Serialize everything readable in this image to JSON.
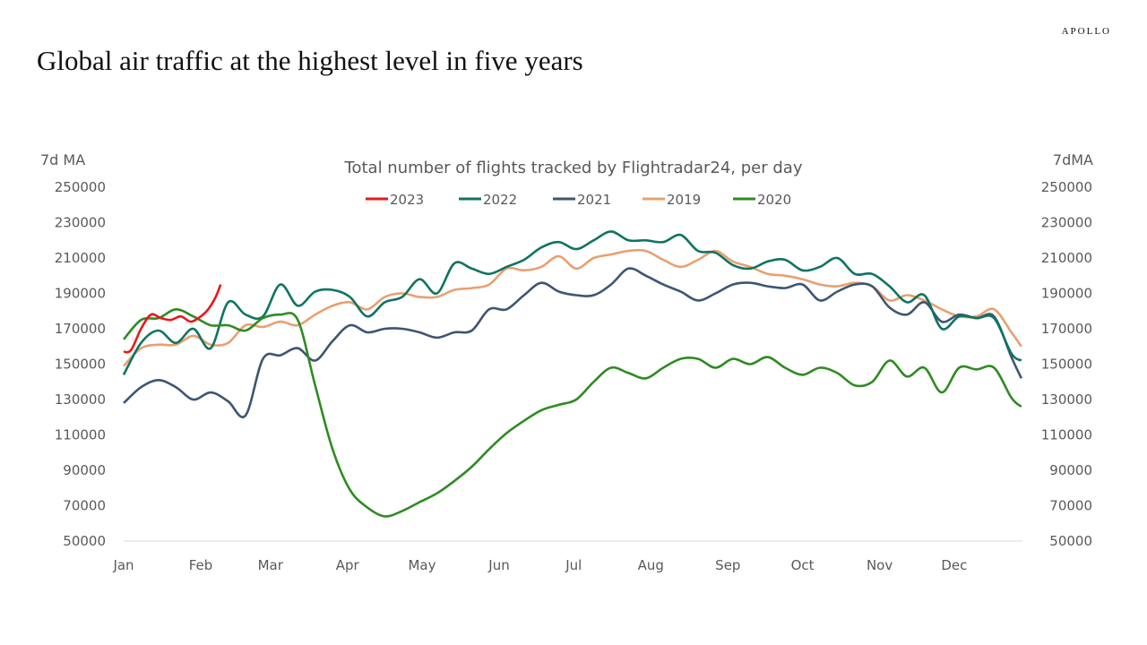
{
  "header": {
    "title": "Global air traffic at the highest level in five years",
    "brand": "APOLLO"
  },
  "chart_data": {
    "type": "line",
    "title": "Total number of flights tracked by Flightradar24, per day",
    "ylabel_left": "7d MA",
    "ylabel_right": "7dMA",
    "ylim": [
      50000,
      250000
    ],
    "yticks": [
      50000,
      70000,
      90000,
      110000,
      130000,
      150000,
      170000,
      190000,
      210000,
      230000,
      250000
    ],
    "xticks": [
      "Jan",
      "Feb",
      "Mar",
      "Apr",
      "May",
      "Jun",
      "Jul",
      "Aug",
      "Sep",
      "Oct",
      "Nov",
      "Dec"
    ],
    "grid": false,
    "legend": "top",
    "x": [
      "01-01",
      "01-08",
      "01-15",
      "01-22",
      "01-29",
      "02-05",
      "02-12",
      "02-19",
      "02-26",
      "03-05",
      "03-12",
      "03-19",
      "03-26",
      "04-02",
      "04-09",
      "04-16",
      "04-23",
      "04-30",
      "05-07",
      "05-14",
      "05-21",
      "05-28",
      "06-04",
      "06-11",
      "06-18",
      "06-25",
      "07-02",
      "07-09",
      "07-16",
      "07-23",
      "07-30",
      "08-06",
      "08-13",
      "08-20",
      "08-27",
      "09-03",
      "09-10",
      "09-17",
      "09-24",
      "10-01",
      "10-08",
      "10-15",
      "10-22",
      "10-29",
      "11-05",
      "11-12",
      "11-19",
      "11-26",
      "12-03",
      "12-10",
      "12-17",
      "12-24",
      "12-28"
    ],
    "series": [
      {
        "name": "2023",
        "color": "#E8191A",
        "x": [
          "01-01",
          "01-04",
          "01-08",
          "01-12",
          "01-16",
          "01-20",
          "01-24",
          "01-28",
          "02-01",
          "02-04",
          "02-07",
          "02-09"
        ],
        "values": [
          157000,
          158000,
          170000,
          178000,
          176000,
          175000,
          177000,
          174000,
          177000,
          181000,
          188000,
          195000
        ]
      },
      {
        "name": "2022",
        "color": "#0E7460",
        "values": [
          144000,
          162000,
          169000,
          162000,
          170000,
          159000,
          185000,
          178000,
          177000,
          195000,
          183000,
          191000,
          192000,
          188000,
          177000,
          185000,
          188000,
          198000,
          190000,
          207000,
          204000,
          201000,
          205000,
          209000,
          216000,
          219000,
          215000,
          220000,
          225000,
          220000,
          220000,
          219000,
          223000,
          214000,
          213000,
          206000,
          204000,
          208000,
          209000,
          203000,
          205000,
          210000,
          201000,
          201000,
          194000,
          185000,
          189000,
          170000,
          177000,
          176000,
          176000,
          156000,
          152000
        ]
      },
      {
        "name": "2021",
        "color": "#3E5573",
        "values": [
          128000,
          137000,
          141000,
          137000,
          130000,
          134000,
          129000,
          121000,
          153000,
          155000,
          159000,
          152000,
          163000,
          172000,
          168000,
          170000,
          170000,
          168000,
          165000,
          168000,
          169000,
          181000,
          181000,
          189000,
          196000,
          191000,
          189000,
          189000,
          195000,
          204000,
          200000,
          195000,
          191000,
          186000,
          190000,
          195000,
          196000,
          194000,
          193000,
          195000,
          186000,
          191000,
          195000,
          194000,
          182000,
          178000,
          185000,
          174000,
          178000,
          176000,
          177000,
          154000,
          142000
        ]
      },
      {
        "name": "2019",
        "color": "#E8A070",
        "values": [
          149000,
          159000,
          161000,
          161000,
          166000,
          161000,
          162000,
          172000,
          171000,
          174000,
          172000,
          178000,
          183000,
          185000,
          181000,
          188000,
          190000,
          188000,
          188000,
          192000,
          193000,
          195000,
          204000,
          203000,
          205000,
          211000,
          204000,
          210000,
          212000,
          214000,
          214000,
          209000,
          205000,
          209000,
          214000,
          208000,
          205000,
          201000,
          200000,
          198000,
          195000,
          194000,
          196000,
          194000,
          186000,
          189000,
          186000,
          181000,
          177000,
          177000,
          181000,
          168000,
          160000
        ]
      },
      {
        "name": "2020",
        "color": "#2E8B22",
        "values": [
          164000,
          175000,
          176000,
          181000,
          177000,
          172000,
          172000,
          169000,
          176000,
          178000,
          175000,
          138000,
          102000,
          79000,
          69000,
          64000,
          67000,
          72000,
          77000,
          84000,
          92000,
          102000,
          111000,
          118000,
          124000,
          127000,
          130000,
          140000,
          148000,
          145000,
          142000,
          148000,
          153000,
          153000,
          148000,
          153000,
          150000,
          154000,
          148000,
          144000,
          148000,
          145000,
          138000,
          140000,
          152000,
          143000,
          148000,
          134000,
          148000,
          147000,
          148000,
          131000,
          126000
        ]
      }
    ]
  }
}
